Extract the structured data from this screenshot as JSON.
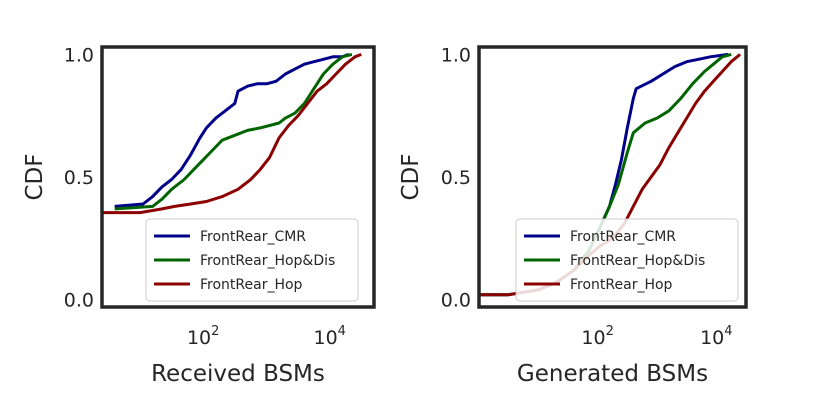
{
  "chart_data": [
    {
      "type": "line",
      "ylabel": "CDF",
      "xlabel": "Received BSMs",
      "xscale": "log",
      "xlim_log10": [
        0.4,
        4.7
      ],
      "ylim": [
        -0.03,
        1.03
      ],
      "xticks": [
        {
          "exp": 2,
          "base": "10",
          "sup": "2"
        },
        {
          "exp": 4,
          "base": "10",
          "sup": "4"
        }
      ],
      "yticks": [
        {
          "value": 0.0,
          "label": "0.0"
        },
        {
          "value": 0.5,
          "label": "0.5"
        },
        {
          "value": 1.0,
          "label": "1.0"
        }
      ],
      "legend_position": "lower-right",
      "series": [
        {
          "name": "FrontRear_CMR",
          "color": "#00008b",
          "log10x": [
            0.6,
            1.05,
            1.2,
            1.35,
            1.5,
            1.65,
            1.8,
            1.95,
            2.05,
            2.2,
            2.35,
            2.5,
            2.55,
            2.7,
            2.85,
            3.0,
            3.15,
            3.3,
            3.45,
            3.6,
            3.75,
            3.9,
            4.05,
            4.2,
            4.3
          ],
          "cdf": [
            0.38,
            0.39,
            0.42,
            0.46,
            0.49,
            0.53,
            0.59,
            0.66,
            0.7,
            0.74,
            0.77,
            0.8,
            0.85,
            0.87,
            0.88,
            0.88,
            0.89,
            0.92,
            0.94,
            0.96,
            0.97,
            0.98,
            0.99,
            0.99,
            1.0
          ]
        },
        {
          "name": "FrontRear_Hop&Dis",
          "color": "#006400",
          "log10x": [
            0.6,
            1.2,
            1.35,
            1.5,
            1.7,
            1.85,
            2.0,
            2.15,
            2.3,
            2.5,
            2.7,
            2.9,
            3.05,
            3.2,
            3.3,
            3.45,
            3.6,
            3.75,
            3.9,
            4.05,
            4.2,
            4.35
          ],
          "cdf": [
            0.37,
            0.38,
            0.41,
            0.45,
            0.49,
            0.53,
            0.57,
            0.61,
            0.65,
            0.67,
            0.69,
            0.7,
            0.71,
            0.72,
            0.74,
            0.76,
            0.8,
            0.86,
            0.92,
            0.96,
            0.99,
            1.0
          ]
        },
        {
          "name": "FrontRear_Hop",
          "color": "#8b0000",
          "log10x": [
            0.4,
            1.0,
            1.35,
            1.55,
            1.8,
            2.05,
            2.3,
            2.55,
            2.75,
            2.9,
            3.05,
            3.2,
            3.35,
            3.5,
            3.65,
            3.8,
            3.95,
            4.1,
            4.25,
            4.4,
            4.5
          ],
          "cdf": [
            0.355,
            0.355,
            0.37,
            0.38,
            0.39,
            0.4,
            0.42,
            0.45,
            0.49,
            0.53,
            0.58,
            0.66,
            0.71,
            0.75,
            0.8,
            0.85,
            0.88,
            0.92,
            0.96,
            0.99,
            1.0
          ]
        }
      ]
    },
    {
      "type": "line",
      "ylabel": "CDF",
      "xlabel": "Generated BSMs",
      "xscale": "log",
      "xlim_log10": [
        0.0,
        4.5
      ],
      "ylim": [
        -0.03,
        1.03
      ],
      "xticks": [
        {
          "exp": 2,
          "base": "10",
          "sup": "2"
        },
        {
          "exp": 4,
          "base": "10",
          "sup": "4"
        }
      ],
      "yticks": [
        {
          "value": 0.0,
          "label": "0.0"
        },
        {
          "value": 0.5,
          "label": "0.5"
        },
        {
          "value": 1.0,
          "label": "1.0"
        }
      ],
      "legend_position": "lower-right",
      "series": [
        {
          "name": "FrontRear_CMR",
          "color": "#00008b",
          "log10x": [
            0.0,
            0.5,
            1.0,
            1.3,
            1.6,
            1.85,
            2.05,
            2.2,
            2.3,
            2.4,
            2.5,
            2.6,
            2.65,
            2.9,
            3.1,
            3.3,
            3.5,
            3.7,
            3.9,
            4.05,
            4.2
          ],
          "cdf": [
            0.02,
            0.02,
            0.04,
            0.07,
            0.12,
            0.2,
            0.3,
            0.38,
            0.47,
            0.57,
            0.7,
            0.82,
            0.86,
            0.89,
            0.92,
            0.95,
            0.97,
            0.98,
            0.99,
            0.995,
            1.0
          ]
        },
        {
          "name": "FrontRear_Hop&Dis",
          "color": "#006400",
          "log10x": [
            0.0,
            0.5,
            1.0,
            1.3,
            1.6,
            1.85,
            2.05,
            2.2,
            2.35,
            2.5,
            2.6,
            2.8,
            3.0,
            3.2,
            3.4,
            3.6,
            3.8,
            3.95,
            4.1,
            4.25
          ],
          "cdf": [
            0.02,
            0.02,
            0.04,
            0.07,
            0.12,
            0.2,
            0.3,
            0.38,
            0.47,
            0.6,
            0.68,
            0.72,
            0.74,
            0.77,
            0.82,
            0.88,
            0.93,
            0.96,
            0.99,
            1.0
          ]
        },
        {
          "name": "FrontRear_Hop",
          "color": "#8b0000",
          "log10x": [
            0.0,
            0.5,
            1.0,
            1.3,
            1.6,
            1.85,
            2.05,
            2.25,
            2.45,
            2.6,
            2.75,
            2.9,
            3.05,
            3.2,
            3.35,
            3.5,
            3.65,
            3.8,
            3.95,
            4.1,
            4.25,
            4.4
          ],
          "cdf": [
            0.02,
            0.02,
            0.04,
            0.07,
            0.12,
            0.18,
            0.22,
            0.25,
            0.31,
            0.38,
            0.45,
            0.5,
            0.55,
            0.62,
            0.68,
            0.74,
            0.8,
            0.85,
            0.89,
            0.93,
            0.97,
            1.0
          ]
        }
      ]
    }
  ]
}
